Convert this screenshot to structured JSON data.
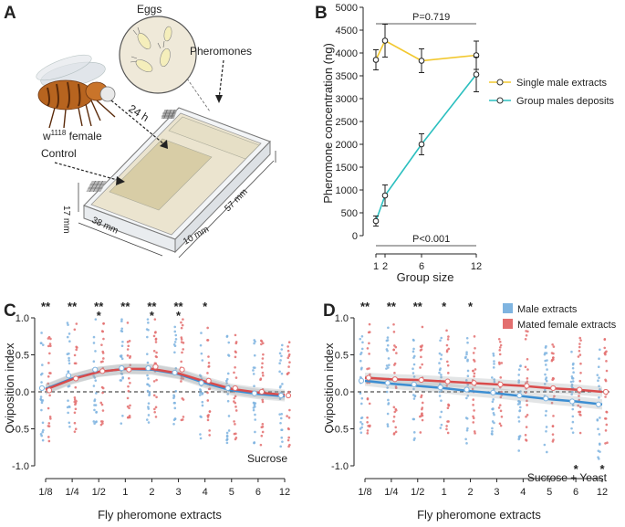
{
  "panels": {
    "A": {
      "label": "A",
      "eggs_label": "Eggs",
      "pheromones_label": "Pheromones",
      "fly_label_prefix": "w",
      "fly_label_sup": "1118",
      "fly_label_suffix": " female",
      "control_label": "Control",
      "time_label": "24 h",
      "dim_height": "17 mm",
      "dim_width": "38 mm",
      "dim_length": "57 mm",
      "dim_side": "10 mm"
    },
    "B": {
      "label": "B"
    },
    "C": {
      "label": "C"
    },
    "D": {
      "label": "D"
    }
  },
  "chart_data": [
    {
      "id": "B",
      "type": "line",
      "ylabel": "Pheromone concentration (ng)",
      "xlabel": "Group size",
      "x_ticks": [
        1,
        2,
        6,
        12
      ],
      "ylim": [
        0,
        5000
      ],
      "y_ticks": [
        0,
        500,
        1000,
        1500,
        2000,
        2500,
        3000,
        3500,
        4000,
        4500,
        5000
      ],
      "series": [
        {
          "name": "Single male extracts",
          "color": "#f2c82f",
          "x": [
            1,
            2,
            6,
            12
          ],
          "y": [
            3850,
            4270,
            3830,
            3950
          ],
          "err": [
            220,
            360,
            260,
            310
          ]
        },
        {
          "name": "Group males deposits",
          "color": "#2bbfbf",
          "x": [
            1,
            2,
            6,
            12
          ],
          "y": [
            320,
            880,
            2000,
            3530
          ],
          "err": [
            110,
            230,
            230,
            380
          ]
        }
      ],
      "annotations": [
        {
          "text": "P=0.719",
          "position": "top"
        },
        {
          "text": "P<0.001",
          "position": "bottom"
        }
      ]
    },
    {
      "id": "C",
      "type": "scatter",
      "ylabel": "Oviposition index",
      "xlabel": "Fly pheromone extracts",
      "categories": [
        "1/8",
        "1/4",
        "1/2",
        "1",
        "2",
        "3",
        "4",
        "5",
        "6",
        "12"
      ],
      "ylim": [
        -1.0,
        1.0
      ],
      "y_ticks": [
        "-1.0",
        "-0.5",
        "0.0",
        "0.5",
        "1.0"
      ],
      "corner_label": "Sucrose",
      "significance": [
        "**",
        "**",
        "***",
        "**",
        "***",
        "***",
        "*",
        "",
        "",
        ""
      ],
      "series": [
        {
          "name": "Male extracts",
          "color": "#7fb4e0",
          "means": [
            0.05,
            0.22,
            0.3,
            0.32,
            0.32,
            0.26,
            0.12,
            0.05,
            -0.02,
            -0.05
          ],
          "fit": [
            0.04,
            0.18,
            0.27,
            0.31,
            0.3,
            0.24,
            0.12,
            0.02,
            -0.03,
            -0.06
          ]
        },
        {
          "name": "Mated female extracts",
          "color": "#e36f6f",
          "means": [
            0.02,
            0.18,
            0.28,
            0.3,
            0.34,
            0.3,
            0.15,
            0.05,
            0.0,
            -0.05
          ],
          "fit": [
            0.03,
            0.17,
            0.27,
            0.31,
            0.31,
            0.25,
            0.14,
            0.04,
            -0.01,
            -0.04
          ]
        }
      ]
    },
    {
      "id": "D",
      "type": "scatter",
      "ylabel": "Oviposition index",
      "xlabel": "Fly pheromone extracts",
      "categories": [
        "1/8",
        "1/4",
        "1/2",
        "1",
        "2",
        "3",
        "4",
        "5",
        "6",
        "12"
      ],
      "ylim": [
        -1.0,
        1.0
      ],
      "y_ticks": [
        "-1.0",
        "-0.5",
        "0.0",
        "0.5",
        "1.0"
      ],
      "corner_label": "Sucrose + Yeast",
      "significance_top": [
        "**",
        "**",
        "**",
        "*",
        "*",
        "",
        "",
        "",
        "",
        ""
      ],
      "significance_bottom": [
        "",
        "",
        "",
        "",
        "",
        "",
        "",
        "",
        "*",
        "*"
      ],
      "legend": [
        "Male extracts",
        "Mated female extracts"
      ],
      "series": [
        {
          "name": "Male extracts",
          "color": "#7fb4e0",
          "means": [
            0.15,
            0.12,
            0.1,
            0.06,
            0.03,
            -0.01,
            -0.05,
            -0.09,
            -0.13,
            -0.17
          ],
          "fit": [
            0.15,
            0.11,
            0.08,
            0.05,
            0.01,
            -0.02,
            -0.06,
            -0.1,
            -0.13,
            -0.17
          ]
        },
        {
          "name": "Mated female extracts",
          "color": "#e36f6f",
          "means": [
            0.19,
            0.17,
            0.16,
            0.14,
            0.12,
            0.1,
            0.08,
            0.05,
            0.03,
            0.0
          ],
          "fit": [
            0.19,
            0.17,
            0.16,
            0.14,
            0.12,
            0.1,
            0.08,
            0.05,
            0.03,
            0.0
          ]
        }
      ]
    }
  ]
}
